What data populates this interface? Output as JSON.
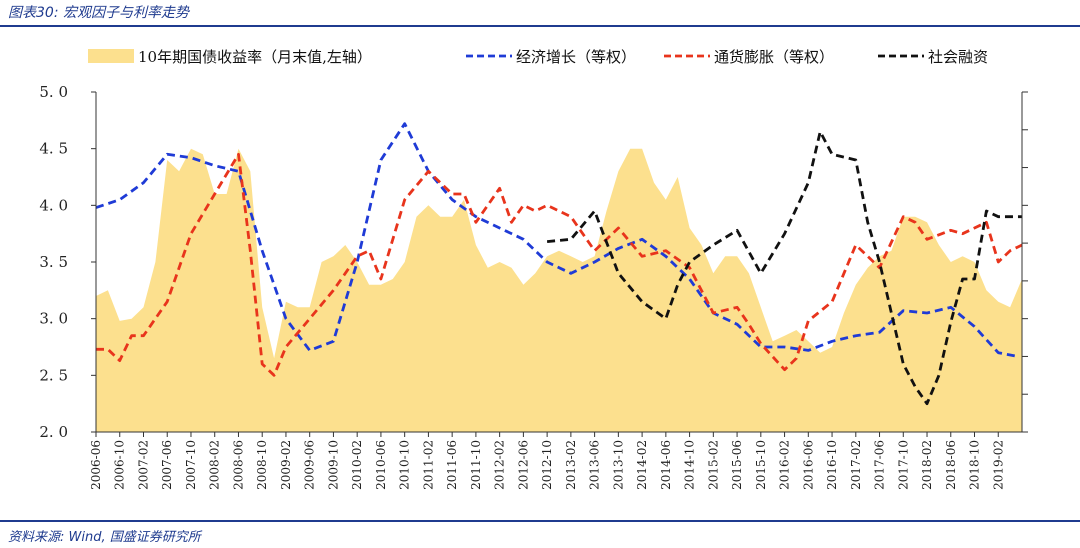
{
  "header": {
    "title": "图表30: 宏观因子与利率走势"
  },
  "footer": {
    "source": "资料来源: Wind, 国盛证券研究所"
  },
  "colors": {
    "brand": "#1f3b8f",
    "area": "#fce08e",
    "growth": "#1f3bd6",
    "inflation": "#e8341c",
    "credit": "#111111"
  },
  "chart_data": {
    "type": "area+line",
    "ylim": [
      2.0,
      5.0
    ],
    "yticks": [
      "2. 0",
      "2. 5",
      "3. 0",
      "3. 5",
      "4. 0",
      "4. 5",
      "5. 0"
    ],
    "xstart": "2006-06",
    "xend": "2019-06",
    "xticks": [
      "2006-06",
      "2006-10",
      "2007-02",
      "2007-06",
      "2007-10",
      "2008-02",
      "2008-06",
      "2008-10",
      "2009-02",
      "2009-06",
      "2009-10",
      "2010-02",
      "2010-06",
      "2010-10",
      "2011-02",
      "2011-06",
      "2011-10",
      "2012-02",
      "2012-06",
      "2012-10",
      "2013-02",
      "2013-06",
      "2013-10",
      "2014-02",
      "2014-06",
      "2014-10",
      "2015-02",
      "2015-06",
      "2015-10",
      "2016-02",
      "2016-06",
      "2016-10",
      "2017-02",
      "2017-06",
      "2017-10",
      "2018-02",
      "2018-06",
      "2018-10",
      "2019-02"
    ],
    "legend": [
      {
        "name": "10年期国债收益率（月末值,左轴）",
        "style": "area"
      },
      {
        "name": "经济增长（等权）",
        "style": "dash-blue"
      },
      {
        "name": "通货膨胀（等权）",
        "style": "dash-red"
      },
      {
        "name": "社会融资",
        "style": "dash-black"
      }
    ],
    "series": [
      {
        "key": "bond10y",
        "type": "area",
        "points": [
          [
            "2006-06",
            3.2
          ],
          [
            "2006-08",
            3.25
          ],
          [
            "2006-10",
            2.98
          ],
          [
            "2006-12",
            3.0
          ],
          [
            "2007-02",
            3.1
          ],
          [
            "2007-04",
            3.5
          ],
          [
            "2007-06",
            4.4
          ],
          [
            "2007-08",
            4.3
          ],
          [
            "2007-10",
            4.5
          ],
          [
            "2007-12",
            4.45
          ],
          [
            "2008-02",
            4.1
          ],
          [
            "2008-04",
            4.1
          ],
          [
            "2008-06",
            4.5
          ],
          [
            "2008-08",
            4.3
          ],
          [
            "2008-10",
            3.1
          ],
          [
            "2008-12",
            2.65
          ],
          [
            "2009-02",
            3.15
          ],
          [
            "2009-04",
            3.1
          ],
          [
            "2009-06",
            3.1
          ],
          [
            "2009-08",
            3.5
          ],
          [
            "2009-10",
            3.55
          ],
          [
            "2009-12",
            3.65
          ],
          [
            "2010-02",
            3.5
          ],
          [
            "2010-04",
            3.3
          ],
          [
            "2010-06",
            3.3
          ],
          [
            "2010-08",
            3.35
          ],
          [
            "2010-10",
            3.5
          ],
          [
            "2010-12",
            3.9
          ],
          [
            "2011-02",
            4.0
          ],
          [
            "2011-04",
            3.9
          ],
          [
            "2011-06",
            3.9
          ],
          [
            "2011-08",
            4.05
          ],
          [
            "2011-10",
            3.65
          ],
          [
            "2011-12",
            3.45
          ],
          [
            "2012-02",
            3.5
          ],
          [
            "2012-04",
            3.45
          ],
          [
            "2012-06",
            3.3
          ],
          [
            "2012-08",
            3.4
          ],
          [
            "2012-10",
            3.55
          ],
          [
            "2012-12",
            3.6
          ],
          [
            "2013-02",
            3.55
          ],
          [
            "2013-04",
            3.5
          ],
          [
            "2013-06",
            3.55
          ],
          [
            "2013-08",
            3.95
          ],
          [
            "2013-10",
            4.3
          ],
          [
            "2013-12",
            4.5
          ],
          [
            "2014-02",
            4.5
          ],
          [
            "2014-04",
            4.2
          ],
          [
            "2014-06",
            4.05
          ],
          [
            "2014-08",
            4.25
          ],
          [
            "2014-10",
            3.8
          ],
          [
            "2014-12",
            3.65
          ],
          [
            "2015-02",
            3.4
          ],
          [
            "2015-04",
            3.55
          ],
          [
            "2015-06",
            3.55
          ],
          [
            "2015-08",
            3.4
          ],
          [
            "2015-10",
            3.1
          ],
          [
            "2015-12",
            2.8
          ],
          [
            "2016-02",
            2.85
          ],
          [
            "2016-04",
            2.9
          ],
          [
            "2016-06",
            2.8
          ],
          [
            "2016-08",
            2.7
          ],
          [
            "2016-10",
            2.75
          ],
          [
            "2016-12",
            3.05
          ],
          [
            "2017-02",
            3.3
          ],
          [
            "2017-04",
            3.45
          ],
          [
            "2017-06",
            3.55
          ],
          [
            "2017-08",
            3.6
          ],
          [
            "2017-10",
            3.9
          ],
          [
            "2017-12",
            3.9
          ],
          [
            "2018-02",
            3.85
          ],
          [
            "2018-04",
            3.65
          ],
          [
            "2018-06",
            3.5
          ],
          [
            "2018-08",
            3.55
          ],
          [
            "2018-10",
            3.5
          ],
          [
            "2018-12",
            3.25
          ],
          [
            "2019-02",
            3.15
          ],
          [
            "2019-04",
            3.1
          ],
          [
            "2019-06",
            3.35
          ]
        ]
      },
      {
        "key": "growth",
        "type": "line",
        "points": [
          [
            "2006-06",
            3.98
          ],
          [
            "2006-10",
            4.05
          ],
          [
            "2007-02",
            4.2
          ],
          [
            "2007-06",
            4.45
          ],
          [
            "2007-10",
            4.42
          ],
          [
            "2008-02",
            4.35
          ],
          [
            "2008-06",
            4.3
          ],
          [
            "2008-10",
            3.6
          ],
          [
            "2009-02",
            3.0
          ],
          [
            "2009-06",
            2.72
          ],
          [
            "2009-10",
            2.8
          ],
          [
            "2010-02",
            3.5
          ],
          [
            "2010-06",
            4.4
          ],
          [
            "2010-10",
            4.72
          ],
          [
            "2011-02",
            4.3
          ],
          [
            "2011-06",
            4.05
          ],
          [
            "2011-10",
            3.9
          ],
          [
            "2012-02",
            3.8
          ],
          [
            "2012-06",
            3.7
          ],
          [
            "2012-10",
            3.5
          ],
          [
            "2013-02",
            3.4
          ],
          [
            "2013-06",
            3.5
          ],
          [
            "2013-10",
            3.62
          ],
          [
            "2014-02",
            3.7
          ],
          [
            "2014-06",
            3.55
          ],
          [
            "2014-10",
            3.35
          ],
          [
            "2015-02",
            3.05
          ],
          [
            "2015-06",
            2.95
          ],
          [
            "2015-10",
            2.75
          ],
          [
            "2016-02",
            2.75
          ],
          [
            "2016-06",
            2.72
          ],
          [
            "2016-10",
            2.8
          ],
          [
            "2017-02",
            2.85
          ],
          [
            "2017-06",
            2.88
          ],
          [
            "2017-10",
            3.07
          ],
          [
            "2018-02",
            3.05
          ],
          [
            "2018-06",
            3.1
          ],
          [
            "2018-10",
            2.93
          ],
          [
            "2019-02",
            2.7
          ],
          [
            "2019-05",
            2.67
          ]
        ]
      },
      {
        "key": "inflation",
        "type": "line",
        "points": [
          [
            "2006-06",
            2.73
          ],
          [
            "2006-08",
            2.73
          ],
          [
            "2006-10",
            2.63
          ],
          [
            "2006-12",
            2.85
          ],
          [
            "2007-02",
            2.85
          ],
          [
            "2007-06",
            3.15
          ],
          [
            "2007-10",
            3.75
          ],
          [
            "2008-02",
            4.1
          ],
          [
            "2008-06",
            4.45
          ],
          [
            "2008-08",
            3.6
          ],
          [
            "2008-10",
            2.6
          ],
          [
            "2008-12",
            2.5
          ],
          [
            "2009-02",
            2.75
          ],
          [
            "2009-06",
            3.0
          ],
          [
            "2009-10",
            3.25
          ],
          [
            "2010-02",
            3.55
          ],
          [
            "2010-04",
            3.6
          ],
          [
            "2010-06",
            3.35
          ],
          [
            "2010-10",
            4.05
          ],
          [
            "2011-02",
            4.3
          ],
          [
            "2011-06",
            4.1
          ],
          [
            "2011-08",
            4.1
          ],
          [
            "2011-10",
            3.85
          ],
          [
            "2012-02",
            4.15
          ],
          [
            "2012-04",
            3.85
          ],
          [
            "2012-06",
            4.0
          ],
          [
            "2012-08",
            3.95
          ],
          [
            "2012-10",
            4.0
          ],
          [
            "2013-02",
            3.9
          ],
          [
            "2013-06",
            3.6
          ],
          [
            "2013-10",
            3.8
          ],
          [
            "2014-02",
            3.55
          ],
          [
            "2014-06",
            3.6
          ],
          [
            "2014-10",
            3.45
          ],
          [
            "2015-02",
            3.05
          ],
          [
            "2015-06",
            3.1
          ],
          [
            "2015-08",
            2.95
          ],
          [
            "2015-10",
            2.78
          ],
          [
            "2016-02",
            2.55
          ],
          [
            "2016-04",
            2.65
          ],
          [
            "2016-06",
            2.98
          ],
          [
            "2016-10",
            3.15
          ],
          [
            "2017-02",
            3.65
          ],
          [
            "2017-04",
            3.55
          ],
          [
            "2017-06",
            3.45
          ],
          [
            "2017-10",
            3.9
          ],
          [
            "2017-12",
            3.85
          ],
          [
            "2018-02",
            3.7
          ],
          [
            "2018-06",
            3.78
          ],
          [
            "2018-08",
            3.75
          ],
          [
            "2018-10",
            3.8
          ],
          [
            "2018-12",
            3.85
          ],
          [
            "2019-02",
            3.5
          ],
          [
            "2019-04",
            3.6
          ],
          [
            "2019-06",
            3.65
          ]
        ]
      },
      {
        "key": "credit",
        "type": "line",
        "points": [
          [
            "2012-10",
            3.68
          ],
          [
            "2013-02",
            3.7
          ],
          [
            "2013-06",
            3.95
          ],
          [
            "2013-10",
            3.4
          ],
          [
            "2014-02",
            3.15
          ],
          [
            "2014-06",
            3.0
          ],
          [
            "2014-08",
            3.3
          ],
          [
            "2014-10",
            3.5
          ],
          [
            "2015-02",
            3.65
          ],
          [
            "2015-06",
            3.78
          ],
          [
            "2015-10",
            3.4
          ],
          [
            "2016-02",
            3.75
          ],
          [
            "2016-06",
            4.2
          ],
          [
            "2016-08",
            4.65
          ],
          [
            "2016-10",
            4.45
          ],
          [
            "2017-02",
            4.4
          ],
          [
            "2017-04",
            3.85
          ],
          [
            "2017-06",
            3.5
          ],
          [
            "2017-08",
            3.05
          ],
          [
            "2017-10",
            2.6
          ],
          [
            "2017-12",
            2.4
          ],
          [
            "2018-02",
            2.25
          ],
          [
            "2018-04",
            2.5
          ],
          [
            "2018-06",
            2.97
          ],
          [
            "2018-08",
            3.35
          ],
          [
            "2018-10",
            3.35
          ],
          [
            "2018-12",
            3.95
          ],
          [
            "2019-02",
            3.9
          ],
          [
            "2019-06",
            3.9
          ]
        ]
      }
    ]
  }
}
